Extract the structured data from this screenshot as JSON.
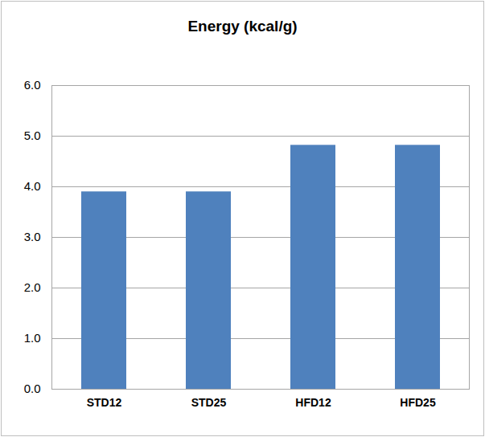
{
  "chart_data": {
    "type": "bar",
    "title": "Energy (kcal/g)",
    "categories": [
      "STD12",
      "STD25",
      "HFD12",
      "HFD25"
    ],
    "values": [
      3.9,
      3.9,
      4.82,
      4.82
    ],
    "color": "#4f81bd",
    "ylim": [
      0,
      6
    ],
    "yticks": [
      0,
      1,
      2,
      3,
      4,
      5,
      6
    ],
    "grid": true
  }
}
